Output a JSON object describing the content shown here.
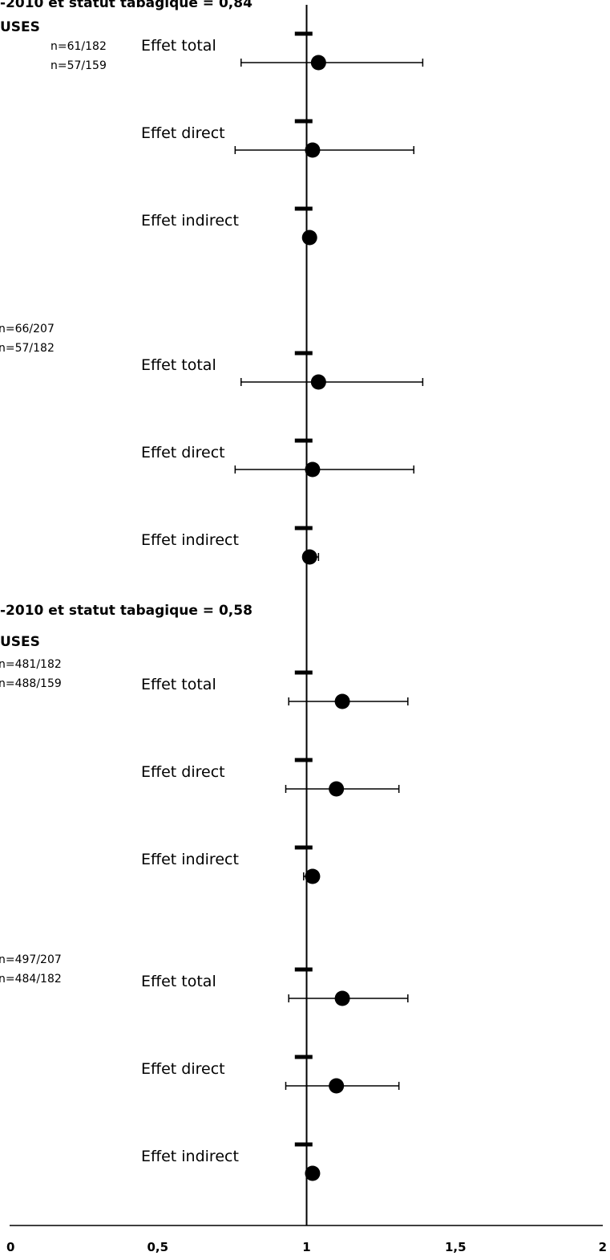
{
  "chart_data": {
    "type": "forest",
    "title": "",
    "xlabel": "",
    "ylabel": "",
    "xlim": [
      0,
      2
    ],
    "reference_line": 1,
    "x_ticks": [
      "0",
      "0,5",
      "1",
      "1,5",
      "2"
    ],
    "headers": [
      "-2010 et statut tabagique = 0,84",
      "USES",
      "-2010 et statut tabagique = 0,58",
      "USES"
    ],
    "blocks": [
      {
        "counts": [
          "n=61/182",
          "n=57/159"
        ],
        "effects": [
          {
            "label": "Effet total",
            "estimate": 1.04,
            "ci": [
              0.78,
              1.39
            ],
            "ref": 0.99
          },
          {
            "label": "Effet direct",
            "estimate": 1.02,
            "ci": [
              0.76,
              1.36
            ],
            "ref": 0.99
          },
          {
            "label": "Effet indirect",
            "estimate": 1.01,
            "ci": [
              1.0,
              1.02
            ],
            "ref": 0.99
          }
        ]
      },
      {
        "counts": [
          "n=66/207",
          "n=57/182"
        ],
        "effects": [
          {
            "label": "Effet total",
            "estimate": 1.04,
            "ci": [
              0.78,
              1.39
            ],
            "ref": 0.99
          },
          {
            "label": "Effet direct",
            "estimate": 1.02,
            "ci": [
              0.76,
              1.36
            ],
            "ref": 0.99
          },
          {
            "label": "Effet indirect",
            "estimate": 1.01,
            "ci": [
              0.99,
              1.04
            ],
            "ref": 0.99
          }
        ]
      },
      {
        "counts": [
          "n=481/182",
          "n=488/159"
        ],
        "effects": [
          {
            "label": "Effet total",
            "estimate": 1.12,
            "ci": [
              0.94,
              1.34
            ],
            "ref": 0.99
          },
          {
            "label": "Effet direct",
            "estimate": 1.1,
            "ci": [
              0.93,
              1.31
            ],
            "ref": 0.99
          },
          {
            "label": "Effet indirect",
            "estimate": 1.02,
            "ci": [
              0.99,
              1.03
            ],
            "ref": 0.99
          }
        ]
      },
      {
        "counts": [
          "n=497/207",
          "n=484/182"
        ],
        "effects": [
          {
            "label": "Effet total",
            "estimate": 1.12,
            "ci": [
              0.94,
              1.34
            ],
            "ref": 0.99
          },
          {
            "label": "Effet direct",
            "estimate": 1.1,
            "ci": [
              0.93,
              1.31
            ],
            "ref": 0.99
          },
          {
            "label": "Effet indirect",
            "estimate": 1.02,
            "ci": [
              1.0,
              1.03
            ],
            "ref": 0.99
          }
        ]
      }
    ]
  }
}
